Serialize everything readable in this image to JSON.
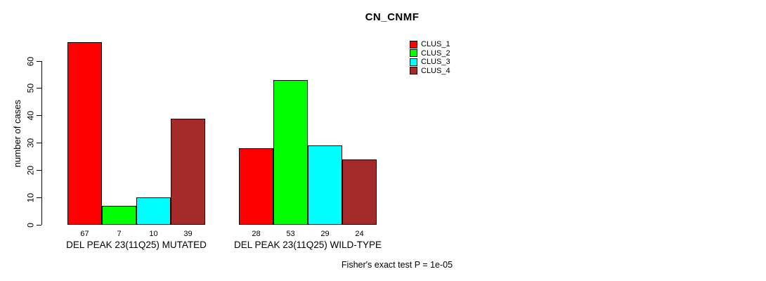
{
  "chart_data": {
    "type": "bar",
    "title": "CN_CNMF",
    "ylabel": "number of cases",
    "ylim": [
      0,
      60
    ],
    "y_ticks": [
      0,
      10,
      20,
      30,
      40,
      50,
      60
    ],
    "grid": false,
    "legend_position": "top-right",
    "series": [
      {
        "name": "CLUS_1",
        "color": "#ff0000"
      },
      {
        "name": "CLUS_2",
        "color": "#00ff00"
      },
      {
        "name": "CLUS_3",
        "color": "#00ffff"
      },
      {
        "name": "CLUS_4",
        "color": "#a52a2a"
      }
    ],
    "groups": [
      {
        "label": "DEL PEAK 23(11Q25) MUTATED",
        "values": [
          67,
          7,
          10,
          39
        ]
      },
      {
        "label": "DEL PEAK 23(11Q25) WILD-TYPE",
        "values": [
          28,
          53,
          29,
          24
        ]
      }
    ],
    "footer": "Fisher's exact test P = 1e-05",
    "axis_color": "#000000",
    "bar_border_color": "#000000"
  }
}
